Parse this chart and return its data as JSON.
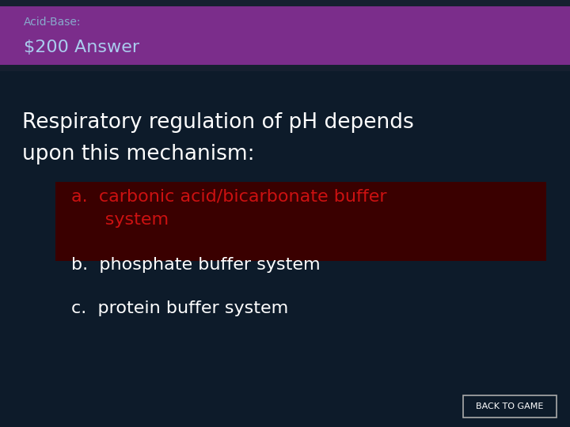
{
  "bg_color": "#0d1b2a",
  "header_color": "#7b2d8b",
  "header_top_color": "#162030",
  "category_text": "Acid-Base:",
  "category_color": "#88aacc",
  "title_text": "$200 Answer",
  "title_color": "#aaccee",
  "question_line1": "Respiratory regulation of pH depends",
  "question_line2": "upon this mechanism:",
  "question_color": "#ffffff",
  "answer_a_line1": "a.  carbonic acid/bicarbonate buffer",
  "answer_a_line2": "      system",
  "answer_a_color": "#cc1111",
  "answer_b": "b.  phosphate buffer system",
  "answer_b_color": "#ffffff",
  "answer_c": "c.  protein buffer system",
  "answer_c_color": "#ffffff",
  "btn_text": "BACK TO GAME",
  "btn_text_color": "#ffffff",
  "btn_border_color": "#aaaaaa",
  "red_bg_color": "#3a0000"
}
